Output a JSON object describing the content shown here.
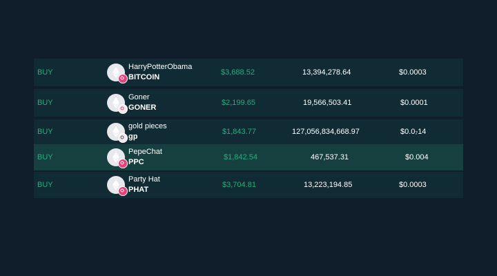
{
  "colors": {
    "page_background": "#101e2c",
    "row_background": "#112b34",
    "row_highlight_background": "#16403f",
    "accent_green": "#22b07a",
    "badge_pink": "#e8407c"
  },
  "tokens": [
    {
      "action": "BUY",
      "name": "HarryPotterObama",
      "symbol": "BITCOIN",
      "price": "$3,688.52",
      "supply": "13,394,278.64",
      "market_value": "$0.0003",
      "icon": "ethereum-icon",
      "badge_icon": "chain-badge-icon"
    },
    {
      "action": "BUY",
      "name": "Goner",
      "symbol": "GONER",
      "price": "$2,199.65",
      "supply": "19,566,503.41",
      "market_value": "$0.0001",
      "icon": "ethereum-icon",
      "badge_icon": "chain-badge-icon"
    },
    {
      "action": "BUY",
      "name": "gold pieces",
      "symbol": "gp",
      "price": "$1,843.77",
      "supply": "127,056,834,668.97",
      "market_value": "$0.0₇14",
      "icon": "ethereum-icon",
      "badge_icon": "chain-badge-icon"
    },
    {
      "action": "BUY",
      "name": "PepeChat",
      "symbol": "PPC",
      "price": "$1,842.54",
      "supply": "467,537.31",
      "market_value": "$0.004",
      "icon": "ethereum-icon",
      "badge_icon": "chain-badge-icon",
      "highlighted": true
    },
    {
      "action": "BUY",
      "name": "Party Hat",
      "symbol": "PHAT",
      "price": "$3,704.81",
      "supply": "13,223,194.85",
      "market_value": "$0.0003",
      "icon": "ethereum-icon",
      "badge_icon": "chain-badge-icon"
    }
  ]
}
